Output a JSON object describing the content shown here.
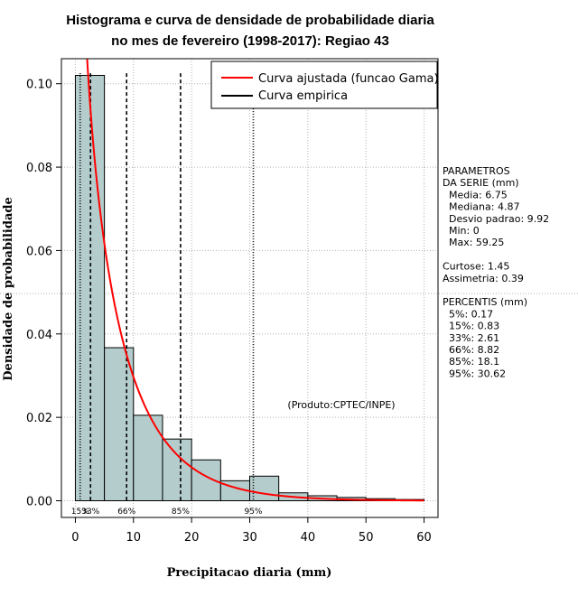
{
  "chart_data": {
    "type": "bar",
    "title_line1": "Histograma e curva de densidade de probabilidade diaria",
    "title_line2": "no mes de fevereiro (1998-2017): Regiao 43",
    "xlabel": "Precipitacao diaria (mm)",
    "ylabel": "Densidade de probabilidade",
    "xlim": [
      -2.4,
      62.4
    ],
    "ylim": [
      -0.004,
      0.106
    ],
    "xticks": [
      0,
      10,
      20,
      30,
      40,
      50,
      60
    ],
    "yticks": [
      0.0,
      0.02,
      0.04,
      0.06,
      0.08,
      0.1
    ],
    "ytick_labels": [
      "0.00",
      "0.02",
      "0.04",
      "0.06",
      "0.08",
      "0.10"
    ],
    "bins": [
      {
        "from": 0,
        "to": 5,
        "density": 0.102
      },
      {
        "from": 5,
        "to": 10,
        "density": 0.0367
      },
      {
        "from": 10,
        "to": 15,
        "density": 0.0205
      },
      {
        "from": 15,
        "to": 20,
        "density": 0.0148
      },
      {
        "from": 20,
        "to": 25,
        "density": 0.0098
      },
      {
        "from": 25,
        "to": 30,
        "density": 0.0048
      },
      {
        "from": 30,
        "to": 35,
        "density": 0.0059
      },
      {
        "from": 35,
        "to": 40,
        "density": 0.0019
      },
      {
        "from": 40,
        "to": 45,
        "density": 0.0012
      },
      {
        "from": 45,
        "to": 50,
        "density": 0.0008
      },
      {
        "from": 50,
        "to": 55,
        "density": 0.0005
      },
      {
        "from": 55,
        "to": 60,
        "density": 0.0003
      }
    ],
    "gamma_curve": {
      "shape": 0.78,
      "scale": 8.65,
      "x_from": 0.3,
      "x_to": 60
    },
    "series": [
      {
        "name": "Curva ajustada (funcao Gama)",
        "color": "#ff0000"
      },
      {
        "name": "Curva empirica",
        "color": "#000000"
      }
    ],
    "percentile_lines": [
      {
        "x": 0.83,
        "label": "15%",
        "style": "dotted"
      },
      {
        "x": 2.61,
        "label": "33%",
        "style": "dashed"
      },
      {
        "x": 8.82,
        "label": "66%",
        "style": "dashed"
      },
      {
        "x": 18.1,
        "label": "85%",
        "style": "dashed"
      },
      {
        "x": 30.62,
        "label": "95%",
        "style": "dotted"
      }
    ],
    "legend_position": "top-right",
    "grid": true,
    "credit": "(Produto:CPTEC/INPE)"
  },
  "colors": {
    "bar_fill": "#b4cccc",
    "bar_stroke": "#000000",
    "curve": "#ff0000",
    "grid": "#b0b0b0"
  },
  "stats_panel": {
    "lines": [
      "PARAMETROS",
      "DA SERIE (mm)",
      "  Media: 6.75",
      "  Mediana: 4.87",
      "  Desvio padrao: 9.92",
      "  Min: 0",
      "  Max: 59.25",
      "",
      "Curtose: 1.45",
      "Assimetria: 0.39",
      "",
      "PERCENTIS (mm)",
      "  5%: 0.17",
      "  15%: 0.83",
      "  33%: 2.61",
      "  66%: 8.82",
      "  85%: 18.1",
      "  95%: 30.62"
    ]
  }
}
